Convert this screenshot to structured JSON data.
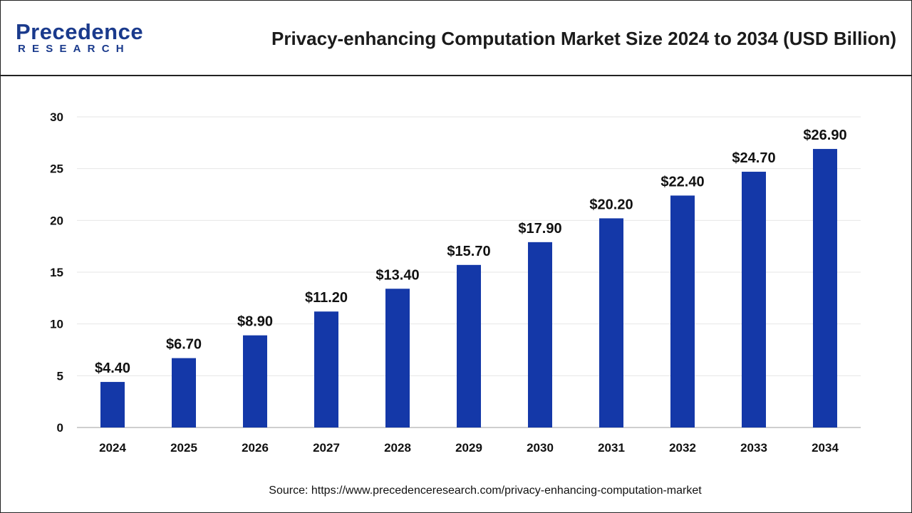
{
  "header": {
    "logo_main": "Precedence",
    "logo_sub": "RESEARCH",
    "title": "Privacy-enhancing Computation Market Size 2024 to 2034 (USD Billion)"
  },
  "colors": {
    "bar": "#1438a8",
    "grid": "#e6e6e6",
    "axis": "#bdbdbd",
    "text": "#111111",
    "logo": "#1a3a8c"
  },
  "chart_data": {
    "type": "bar",
    "title": "Privacy-enhancing Computation Market Size 2024 to 2034 (USD Billion)",
    "xlabel": "",
    "ylabel": "",
    "categories": [
      "2024",
      "2025",
      "2026",
      "2027",
      "2028",
      "2029",
      "2030",
      "2031",
      "2032",
      "2033",
      "2034"
    ],
    "values": [
      4.4,
      6.7,
      8.9,
      11.2,
      13.4,
      15.7,
      17.9,
      20.2,
      22.4,
      24.7,
      26.9
    ],
    "value_labels": [
      "$4.40",
      "$6.70",
      "$8.90",
      "$11.20",
      "$13.40",
      "$15.70",
      "$17.90",
      "$20.20",
      "$22.40",
      "$24.70",
      "$26.90"
    ],
    "yticks": [
      0,
      5,
      10,
      15,
      20,
      25,
      30
    ],
    "ylim": [
      0,
      30
    ],
    "grid": true
  },
  "footer": {
    "source": "Source: https://www.precedenceresearch.com/privacy-enhancing-computation-market"
  }
}
